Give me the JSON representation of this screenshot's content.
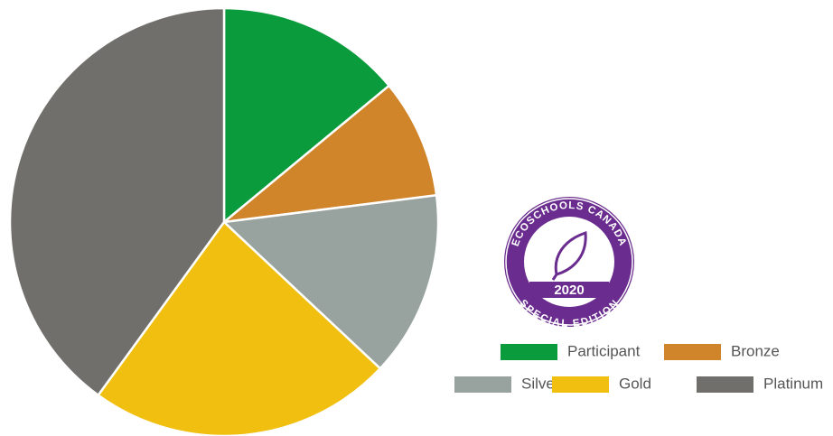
{
  "chart_data": {
    "type": "pie",
    "categories": [
      "Participant",
      "Bronze",
      "Silver",
      "Gold",
      "Platinum"
    ],
    "values": [
      14,
      9,
      14,
      23,
      40
    ],
    "colors": [
      "#0a9b3c",
      "#d0852b",
      "#98a29f",
      "#f0bf10",
      "#716f6b"
    ],
    "legend": "bottom-right"
  },
  "logo": {
    "top_text": "ECOSCHOOLS CANADA",
    "year": "2020",
    "bottom_text": "SPECIAL EDITION"
  }
}
